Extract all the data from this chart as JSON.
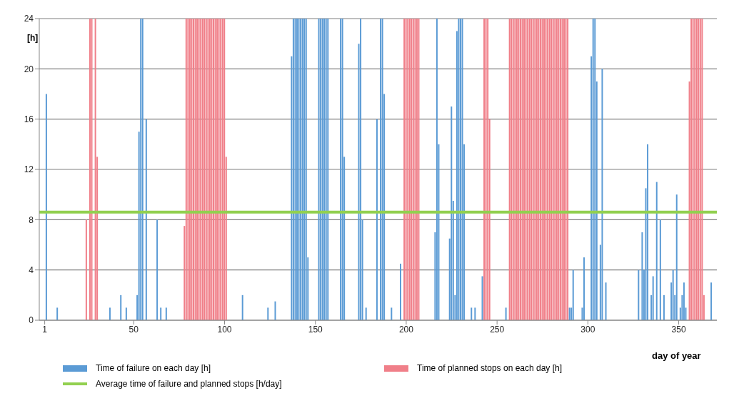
{
  "chart_data": {
    "type": "bar",
    "ylabel": "[h]",
    "xlabel": "day of year",
    "xlim": [
      -2,
      371
    ],
    "xticks": [
      1,
      50,
      100,
      150,
      200,
      250,
      300,
      350
    ],
    "ylim": [
      0,
      24
    ],
    "yticks": [
      0,
      4,
      8,
      12,
      16,
      20,
      24
    ],
    "grid": "y",
    "legend": "bottom",
    "series": [
      {
        "name": "Time of failure on each day [h]",
        "color": "#5b9bd5",
        "x": [
          2,
          8,
          37,
          43,
          46,
          52,
          53,
          54,
          55,
          57,
          63,
          65,
          68,
          110,
          124,
          128,
          137,
          138,
          139,
          140,
          141,
          142,
          143,
          144,
          145,
          146,
          152,
          153,
          154,
          155,
          156,
          157,
          164,
          165,
          166,
          174,
          175,
          176,
          178,
          184,
          186,
          187,
          188,
          192,
          197,
          216,
          217,
          218,
          224,
          225,
          226,
          227,
          228,
          229,
          230,
          231,
          232,
          236,
          238,
          242,
          255,
          290,
          291,
          292,
          297,
          298,
          302,
          303,
          304,
          305,
          307,
          308,
          310,
          328,
          330,
          331,
          332,
          333,
          335,
          336,
          338,
          340,
          342,
          346,
          347,
          348,
          349,
          351,
          352,
          353,
          354,
          368
        ],
        "values": [
          18,
          1,
          1,
          2,
          1,
          2,
          15,
          24,
          24,
          16,
          8,
          1,
          1,
          2,
          1,
          1.5,
          21,
          24,
          24,
          24,
          24,
          24,
          24,
          24,
          24,
          5,
          24,
          24,
          24,
          24,
          24,
          24,
          24,
          24,
          13,
          22,
          24,
          8,
          1,
          16,
          24,
          24,
          18,
          1,
          4.5,
          7,
          24,
          14,
          6.5,
          17,
          9.5,
          2,
          23,
          24,
          24,
          24,
          14,
          1,
          1,
          3.5,
          1,
          1,
          1,
          4,
          1,
          5,
          21,
          24,
          24,
          19,
          6,
          20,
          3,
          4,
          7,
          4,
          10.5,
          14,
          2,
          3.5,
          11,
          8,
          2,
          3,
          4,
          2,
          10,
          1,
          2,
          3,
          1,
          3
        ]
      },
      {
        "name": "Time of planned stops on each day [h]",
        "color": "#f07f89",
        "x": [
          24,
          26,
          27,
          29,
          30,
          78,
          79,
          80,
          81,
          82,
          83,
          84,
          85,
          86,
          87,
          88,
          89,
          90,
          91,
          92,
          93,
          94,
          95,
          96,
          97,
          98,
          99,
          100,
          101,
          199,
          200,
          201,
          202,
          203,
          204,
          205,
          206,
          207,
          243,
          244,
          245,
          246,
          257,
          258,
          259,
          260,
          261,
          262,
          263,
          264,
          265,
          266,
          267,
          268,
          269,
          270,
          271,
          272,
          273,
          274,
          275,
          276,
          277,
          278,
          279,
          280,
          281,
          282,
          283,
          284,
          285,
          286,
          287,
          288,
          289,
          356,
          357,
          358,
          359,
          360,
          361,
          362,
          363,
          364
        ],
        "values": [
          8,
          24,
          24,
          24,
          13,
          7.5,
          24,
          24,
          24,
          24,
          24,
          24,
          24,
          24,
          24,
          24,
          24,
          24,
          24,
          24,
          24,
          24,
          24,
          24,
          24,
          24,
          24,
          24,
          13,
          24,
          24,
          24,
          24,
          24,
          24,
          24,
          24,
          24,
          24,
          24,
          24,
          16,
          24,
          24,
          24,
          24,
          24,
          24,
          24,
          24,
          24,
          24,
          24,
          24,
          24,
          24,
          24,
          24,
          24,
          24,
          24,
          24,
          24,
          24,
          24,
          24,
          24,
          24,
          24,
          24,
          24,
          24,
          24,
          24,
          24,
          19,
          24,
          24,
          24,
          24,
          24,
          24,
          24,
          2
        ]
      }
    ],
    "ref_lines": [
      {
        "axis": "y",
        "value": 8.6,
        "label": "Average time of failure and planned stops [h/day]",
        "color": "#92d050"
      }
    ]
  }
}
